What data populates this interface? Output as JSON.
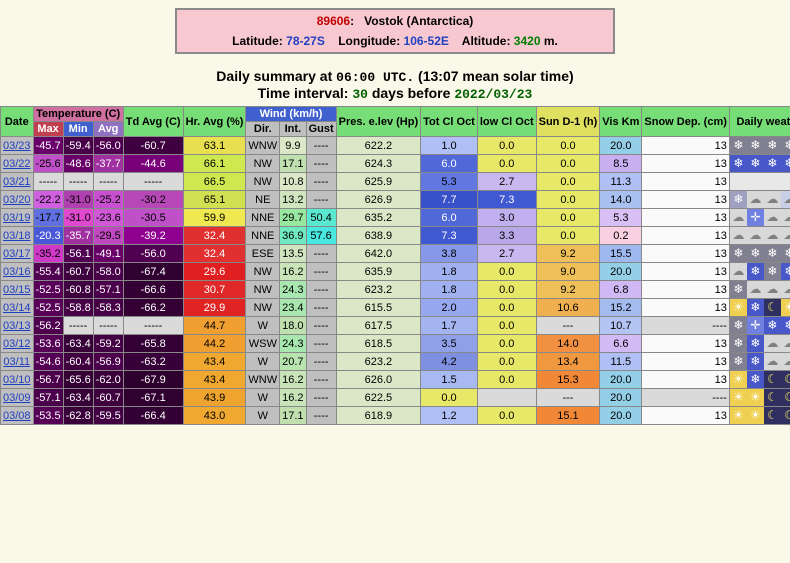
{
  "station": {
    "id": "89606",
    "name": "Vostok (Antarctica)",
    "lat_label": "Latitude:",
    "lat": "78-27S",
    "lon_label": "Longitude:",
    "lon": "106-52E",
    "alt_label": "Altitude:",
    "alt_val": "3420",
    "alt_unit": " m."
  },
  "summary_line": {
    "prefix": "Daily summary at ",
    "utc": "06:00",
    "utc_suffix": " UTC.",
    "solar": " (13:07 mean solar time)",
    "interval_prefix": "Time interval: ",
    "interval_days": "30",
    "interval_mid": " days before ",
    "interval_date": "2022/03/23"
  },
  "header_colors": {
    "green": "#77dd77",
    "magenta": "#d070a0",
    "red": "#c04050",
    "blue": "#4060d0",
    "violet": "#9070c0",
    "yellow": "#e0e060",
    "grey": "#bfbfbf"
  },
  "headers": {
    "date": "Date",
    "temp": "Temperature (C)",
    "max": "Max",
    "min": "Min",
    "avg": "Avg",
    "td": "Td Avg (C)",
    "hr": "Hr. Avg (%)",
    "wind": "Wind (km/h)",
    "dir": "Dir.",
    "int": "Int.",
    "gust": "Gust",
    "pres": "Pres. e.lev (Hp)",
    "totcl": "Tot Cl Oct",
    "lowcl": "low Cl Oct",
    "sun": "Sun D-1 (h)",
    "vis": "Vis Km",
    "snow": "Snow Dep. (cm)",
    "daily": "Daily weather summary"
  },
  "rows": [
    {
      "date": "03/23",
      "tmax": "-45.7",
      "tmaxC": "#690069",
      "tmin": "-59.4",
      "tminC": "#480048",
      "tavg": "-56.0",
      "tavgC": "#500050",
      "td": "-60.7",
      "tdC": "#3e003e",
      "hr": "63.1",
      "hrC": "#e8e050",
      "dir": "WNW",
      "dirC": "#bfbfbf",
      "int": "9.9",
      "intC": "#dae8c8",
      "gust": "----",
      "gustC": "#bfbfbf",
      "pres": "622.2",
      "presC": "#dae8c8",
      "tot": "1.0",
      "totC": "#b0c0f5",
      "low": "0.0",
      "lowC": "#e8e868",
      "sun": "0.0",
      "sunC": "#e8e868",
      "vis": "20.0",
      "visC": "#94cfe8",
      "snow": "13",
      "snowC": "#fafafa",
      "icons": [
        "snow",
        "snow",
        "snow",
        "snow",
        "snow",
        "usnow",
        "usnow",
        "isnow"
      ]
    },
    {
      "date": "03/22",
      "tmax": "-25.6",
      "tmaxC": "#c050c8",
      "tmin": "-48.6",
      "tminC": "#680068",
      "tavg": "-37.7",
      "tavgC": "#a030a0",
      "td": "-44.6",
      "tdC": "#780078",
      "hr": "66.1",
      "hrC": "#d0e850",
      "dir": "NW",
      "dirC": "#bfbfbf",
      "int": "17.1",
      "intC": "#c0e0b0",
      "gust": "----",
      "gustC": "#bfbfbf",
      "pres": "624.3",
      "presC": "#dae8c8",
      "tot": "6.0",
      "totC": "#5068d8",
      "low": "0.0",
      "lowC": "#e8e868",
      "sun": "0.0",
      "sunC": "#e8e868",
      "vis": "8.5",
      "visC": "#c8b0f0",
      "snow": "13",
      "snowC": "#fafafa",
      "icons": [
        "csnow",
        "csnow",
        "csnow",
        "csnow",
        "csnow",
        "cross",
        "cld",
        "ovc"
      ]
    },
    {
      "date": "03/21",
      "tmax": "-----",
      "tmaxC": "#dadada",
      "tmin": "-----",
      "tminC": "#dadada",
      "tavg": "-----",
      "tavgC": "#dadada",
      "td": "-----",
      "tdC": "#dadada",
      "hr": "66.5",
      "hrC": "#d0e850",
      "dir": "NW",
      "dirC": "#bfbfbf",
      "int": "10.8",
      "intC": "#dae8c8",
      "gust": "----",
      "gustC": "#bfbfbf",
      "pres": "625.9",
      "presC": "#dae8c8",
      "tot": "5.3",
      "totC": "#6078e0",
      "low": "2.7",
      "lowC": "#c8b8f0",
      "sun": "0.0",
      "sunC": "#e8e868",
      "vis": "11.3",
      "visC": "#b0c0f5",
      "snow": "13",
      "snowC": "#fafafa",
      "icons": [
        "blank",
        "blank",
        "blank",
        "blank",
        "blank",
        "blank",
        "blank",
        "blank"
      ]
    },
    {
      "date": "03/20",
      "tmax": "-22.2",
      "tmaxC": "#d060e0",
      "tmin": "-31.0",
      "tminC": "#b040b0",
      "tavg": "-25.2",
      "tavgC": "#c850d0",
      "td": "-30.2",
      "tdC": "#b848b8",
      "hr": "65.1",
      "hrC": "#d0e050",
      "dir": "NE",
      "dirC": "#bfbfbf",
      "int": "13.2",
      "intC": "#d0e4c0",
      "gust": "----",
      "gustC": "#bfbfbf",
      "pres": "626.9",
      "presC": "#dae8c8",
      "tot": "7.7",
      "totC": "#3850c8",
      "low": "7.3",
      "lowC": "#4058d0",
      "sun": "0.0",
      "sunC": "#e8e868",
      "vis": "14.0",
      "visC": "#a8c0f0",
      "snow": "13",
      "snowC": "#fafafa",
      "icons": [
        "isnow",
        "ovc",
        "ovc",
        "cld",
        "csnow",
        "csnow",
        "csnow",
        "csnow"
      ]
    },
    {
      "date": "03/19",
      "tmax": "-17.7",
      "tmaxC": "#6070e0",
      "tmin": "-31.0",
      "tminC": "#e048d0",
      "tavg": "-23.6",
      "tavgC": "#d058d8",
      "td": "-30.5",
      "tdC": "#c050c8",
      "hr": "59.9",
      "hrC": "#f0e850",
      "dir": "NNE",
      "dirC": "#bfbfbf",
      "int": "29.7",
      "intC": "#98e8a0",
      "gust": "50.4",
      "gustC": "#5ae8d0",
      "pres": "635.2",
      "presC": "#dae8c8",
      "tot": "6.0",
      "totC": "#5068d8",
      "low": "3.0",
      "lowC": "#c0b0f0",
      "sun": "0.0",
      "sunC": "#e8e868",
      "vis": "5.3",
      "visC": "#d8c0f5",
      "snow": "13",
      "snowC": "#fafafa",
      "icons": [
        "ovc",
        "cross",
        "ovc",
        "ovc",
        "ovc",
        "ovc",
        "cross",
        "ovc"
      ]
    },
    {
      "date": "03/18",
      "tmax": "-20.3",
      "tmaxC": "#4858d8",
      "tmin": "-35.7",
      "tminC": "#a030a0",
      "tavg": "-29.5",
      "tavgC": "#c048c0",
      "td": "-39.2",
      "tdC": "#900090",
      "hr": "32.4",
      "hrC": "#e03030",
      "dir": "NNE",
      "dirC": "#bfbfbf",
      "int": "36.9",
      "intC": "#70e8c0",
      "gust": "57.6",
      "gustC": "#48e8e0",
      "pres": "638.9",
      "presC": "#dae8c8",
      "tot": "7.3",
      "totC": "#4058d0",
      "low": "3.3",
      "lowC": "#b8a8e8",
      "sun": "0.0",
      "sunC": "#e8e868",
      "vis": "0.2",
      "visC": "#f8d0e0",
      "snow": "13",
      "snowC": "#fafafa",
      "icons": [
        "ovc",
        "ovc",
        "ovc",
        "ovc",
        "ovc",
        "ovc",
        "ovc",
        "ovc"
      ]
    },
    {
      "date": "03/17",
      "tmax": "-35.2",
      "tmaxC": "#d038c8",
      "tmin": "-56.1",
      "tminC": "#500050",
      "tavg": "-49.1",
      "tavgC": "#680068",
      "td": "-56.0",
      "tdC": "#500050",
      "hr": "32.4",
      "hrC": "#e03030",
      "dir": "ESE",
      "dirC": "#bfbfbf",
      "int": "13.5",
      "intC": "#d0e4c0",
      "gust": "----",
      "gustC": "#bfbfbf",
      "pres": "642.0",
      "presC": "#dae8c8",
      "tot": "3.8",
      "totC": "#8898e8",
      "low": "2.7",
      "lowC": "#c8b8f0",
      "sun": "9.2",
      "sunC": "#f0c058",
      "vis": "15.5",
      "visC": "#a0b8f0",
      "snow": "13",
      "snowC": "#fafafa",
      "icons": [
        "snow",
        "snow",
        "snow",
        "snow",
        "snow",
        "usnow",
        "isnow",
        "ovc"
      ]
    },
    {
      "date": "03/16",
      "tmax": "-55.4",
      "tmaxC": "#500050",
      "tmin": "-60.7",
      "tminC": "#3e003e",
      "tavg": "-58.0",
      "tavgC": "#480048",
      "td": "-67.4",
      "tdC": "#300030",
      "hr": "29.6",
      "hrC": "#e02020",
      "dir": "NW",
      "dirC": "#bfbfbf",
      "int": "16.2",
      "intC": "#c8e4b8",
      "gust": "----",
      "gustC": "#bfbfbf",
      "pres": "635.9",
      "presC": "#dae8c8",
      "tot": "1.8",
      "totC": "#a0b0f0",
      "low": "0.0",
      "lowC": "#e8e868",
      "sun": "9.0",
      "sunC": "#f0c058",
      "vis": "20.0",
      "visC": "#94cfe8",
      "snow": "13",
      "snowC": "#fafafa",
      "icons": [
        "ovc",
        "csnow",
        "snow",
        "csnow",
        "snow",
        "snow",
        "ovc",
        "sun"
      ]
    },
    {
      "date": "03/15",
      "tmax": "-52.5",
      "tmaxC": "#580058",
      "tmin": "-60.8",
      "tminC": "#3e003e",
      "tavg": "-57.1",
      "tavgC": "#4a004a",
      "td": "-66.6",
      "tdC": "#320032",
      "hr": "30.7",
      "hrC": "#e02828",
      "dir": "NW",
      "dirC": "#bfbfbf",
      "int": "24.3",
      "intC": "#a8e8b0",
      "gust": "----",
      "gustC": "#bfbfbf",
      "pres": "623.2",
      "presC": "#dae8c8",
      "tot": "1.8",
      "totC": "#a0b0f0",
      "low": "0.0",
      "lowC": "#e8e868",
      "sun": "9.2",
      "sunC": "#f0c058",
      "vis": "6.8",
      "visC": "#d0b8f5",
      "snow": "13",
      "snowC": "#fafafa",
      "icons": [
        "snow",
        "ovc",
        "ovc",
        "ovc",
        "ovc",
        "ovc",
        "ovc",
        "ovc"
      ]
    },
    {
      "date": "03/14",
      "tmax": "-52.5",
      "tmaxC": "#580058",
      "tmin": "-58.8",
      "tminC": "#460046",
      "tavg": "-58.3",
      "tavgC": "#460046",
      "td": "-66.2",
      "tdC": "#340034",
      "hr": "29.9",
      "hrC": "#e02424",
      "dir": "NW",
      "dirC": "#bfbfbf",
      "int": "23.4",
      "intC": "#a8e8b0",
      "gust": "----",
      "gustC": "#bfbfbf",
      "pres": "615.5",
      "presC": "#dae8c8",
      "tot": "2.0",
      "totC": "#98a8f0",
      "low": "0.0",
      "lowC": "#e8e868",
      "sun": "10.6",
      "sunC": "#f0b050",
      "vis": "15.2",
      "visC": "#a4bbf0",
      "snow": "13",
      "snowC": "#fafafa",
      "icons": [
        "sun",
        "csnow",
        "moon",
        "sun",
        "csnow",
        "csnow",
        "csnow",
        "csnow"
      ]
    },
    {
      "date": "03/13",
      "tmax": "-56.2",
      "tmaxC": "#4e004e",
      "tmin": "-----",
      "tminC": "#dadada",
      "tavg": "-----",
      "tavgC": "#dadada",
      "td": "-----",
      "tdC": "#dadada",
      "hr": "44.7",
      "hrC": "#f0a030",
      "dir": "W",
      "dirC": "#bfbfbf",
      "int": "18.0",
      "intC": "#c0e0b0",
      "gust": "----",
      "gustC": "#bfbfbf",
      "pres": "617.5",
      "presC": "#dae8c8",
      "tot": "1.7",
      "totC": "#a4b4f0",
      "low": "0.0",
      "lowC": "#e8e868",
      "sun": "---",
      "sunC": "#dadada",
      "vis": "10.7",
      "visC": "#b4c4f5",
      "snow": "----",
      "snowC": "#dadada",
      "icons": [
        "snow",
        "cross",
        "csnow",
        "csnow",
        "csnow",
        "ovc",
        "cross",
        "csnow"
      ]
    },
    {
      "date": "03/12",
      "tmax": "-53.6",
      "tmaxC": "#560056",
      "tmin": "-63.4",
      "tminC": "#380038",
      "tavg": "-59.2",
      "tavgC": "#440044",
      "td": "-65.8",
      "tdC": "#340034",
      "hr": "44.2",
      "hrC": "#f0a030",
      "dir": "WSW",
      "dirC": "#bfbfbf",
      "int": "24.3",
      "intC": "#a8e8b0",
      "gust": "----",
      "gustC": "#bfbfbf",
      "pres": "618.5",
      "presC": "#dae8c8",
      "tot": "3.5",
      "totC": "#90a0e8",
      "low": "0.0",
      "lowC": "#e8e868",
      "sun": "14.0",
      "sunC": "#f09040",
      "vis": "6.6",
      "visC": "#d2baf5",
      "snow": "13",
      "snowC": "#fafafa",
      "icons": [
        "snow",
        "csnow",
        "ovc",
        "ovc",
        "ovc",
        "ovc",
        "csnow",
        "ovc"
      ]
    },
    {
      "date": "03/11",
      "tmax": "-54.6",
      "tmaxC": "#540054",
      "tmin": "-60.4",
      "tminC": "#400040",
      "tavg": "-56.9",
      "tavgC": "#4c004c",
      "td": "-63.2",
      "tdC": "#380038",
      "hr": "43.4",
      "hrC": "#f0a830",
      "dir": "W",
      "dirC": "#bfbfbf",
      "int": "20.7",
      "intC": "#b8e4b0",
      "gust": "----",
      "gustC": "#bfbfbf",
      "pres": "623.2",
      "presC": "#dae8c8",
      "tot": "4.2",
      "totC": "#8090e0",
      "low": "0.0",
      "lowC": "#e8e868",
      "sun": "13.4",
      "sunC": "#f09840",
      "vis": "11.5",
      "visC": "#b0c0f5",
      "snow": "13",
      "snowC": "#fafafa",
      "icons": [
        "snow",
        "csnow",
        "ovc",
        "ovc",
        "ovc",
        "csnow",
        "snow",
        "snow"
      ]
    },
    {
      "date": "03/10",
      "tmax": "-56.7",
      "tmaxC": "#4c004c",
      "tmin": "-65.6",
      "tminC": "#340034",
      "tavg": "-62.0",
      "tavgC": "#3a003a",
      "td": "-67.9",
      "tdC": "#2e002e",
      "hr": "43.4",
      "hrC": "#f0a830",
      "dir": "WNW",
      "dirC": "#bfbfbf",
      "int": "16.2",
      "intC": "#c8e4b8",
      "gust": "----",
      "gustC": "#bfbfbf",
      "pres": "626.0",
      "presC": "#dae8c8",
      "tot": "1.5",
      "totC": "#a8b8f0",
      "low": "0.0",
      "lowC": "#e8e868",
      "sun": "15.3",
      "sunC": "#f08838",
      "vis": "20.0",
      "visC": "#94cfe8",
      "snow": "13",
      "snowC": "#fafafa",
      "icons": [
        "sun",
        "csnow",
        "moon",
        "moon",
        "sun",
        "snow",
        "csnow",
        "snow"
      ]
    },
    {
      "date": "03/09",
      "tmax": "-57.1",
      "tmaxC": "#4a004a",
      "tmin": "-63.4",
      "tminC": "#380038",
      "tavg": "-60.7",
      "tavgC": "#3e003e",
      "td": "-67.1",
      "tdC": "#300030",
      "hr": "43.9",
      "hrC": "#f0a430",
      "dir": "W",
      "dirC": "#bfbfbf",
      "int": "16.2",
      "intC": "#c8e4b8",
      "gust": "----",
      "gustC": "#bfbfbf",
      "pres": "622.5",
      "presC": "#dae8c8",
      "tot": "0.0",
      "totC": "#e8e868",
      "low": "",
      "lowC": "#dadada",
      "sun": "---",
      "sunC": "#dadada",
      "vis": "20.0",
      "visC": "#94cfe8",
      "snow": "----",
      "snowC": "#dadada",
      "icons": [
        "sun",
        "sun",
        "moon",
        "moon",
        "sun",
        "sun",
        "sun",
        "sun"
      ]
    },
    {
      "date": "03/08",
      "tmax": "-53.5",
      "tmaxC": "#560056",
      "tmin": "-62.8",
      "tminC": "#3a003a",
      "tavg": "-59.5",
      "tavgC": "#420042",
      "td": "-66.4",
      "tdC": "#320032",
      "hr": "43.0",
      "hrC": "#f0a830",
      "dir": "W",
      "dirC": "#bfbfbf",
      "int": "17.1",
      "intC": "#c0e0b0",
      "gust": "----",
      "gustC": "#bfbfbf",
      "pres": "618.9",
      "presC": "#dae8c8",
      "tot": "1.2",
      "totC": "#b0c0f5",
      "low": "0.0",
      "lowC": "#e8e868",
      "sun": "15.1",
      "sunC": "#f08838",
      "vis": "20.0",
      "visC": "#94cfe8",
      "snow": "13",
      "snowC": "#fafafa",
      "icons": [
        "sun",
        "sun",
        "moon",
        "moon",
        "snow",
        "snow",
        "csnow",
        "sun"
      ]
    }
  ],
  "icon_styles": {
    "sun": {
      "bg": "#f0d050",
      "fg": "#ffffff",
      "glyph": "☀"
    },
    "moon": {
      "bg": "#303060",
      "fg": "#f0e060",
      "glyph": "☾"
    },
    "snow": {
      "bg": "#808090",
      "fg": "#ffffff",
      "glyph": "❄"
    },
    "csnow": {
      "bg": "#4858c8",
      "fg": "#ffffff",
      "glyph": "❄"
    },
    "usnow": {
      "bg": "#606070",
      "fg": "#ffffff",
      "glyph": "❄"
    },
    "isnow": {
      "bg": "#a0a0c0",
      "fg": "#ffffff",
      "glyph": "❄"
    },
    "ovc": {
      "bg": "#d8d8d8",
      "fg": "#808080",
      "glyph": "☁"
    },
    "cld": {
      "bg": "#c8d0e8",
      "fg": "#808080",
      "glyph": "☁"
    },
    "cross": {
      "bg": "#7080e0",
      "fg": "#ffffff",
      "glyph": "✛"
    },
    "blank": {
      "bg": "#e8e8e8",
      "fg": "#e8e8e8",
      "glyph": " "
    }
  }
}
